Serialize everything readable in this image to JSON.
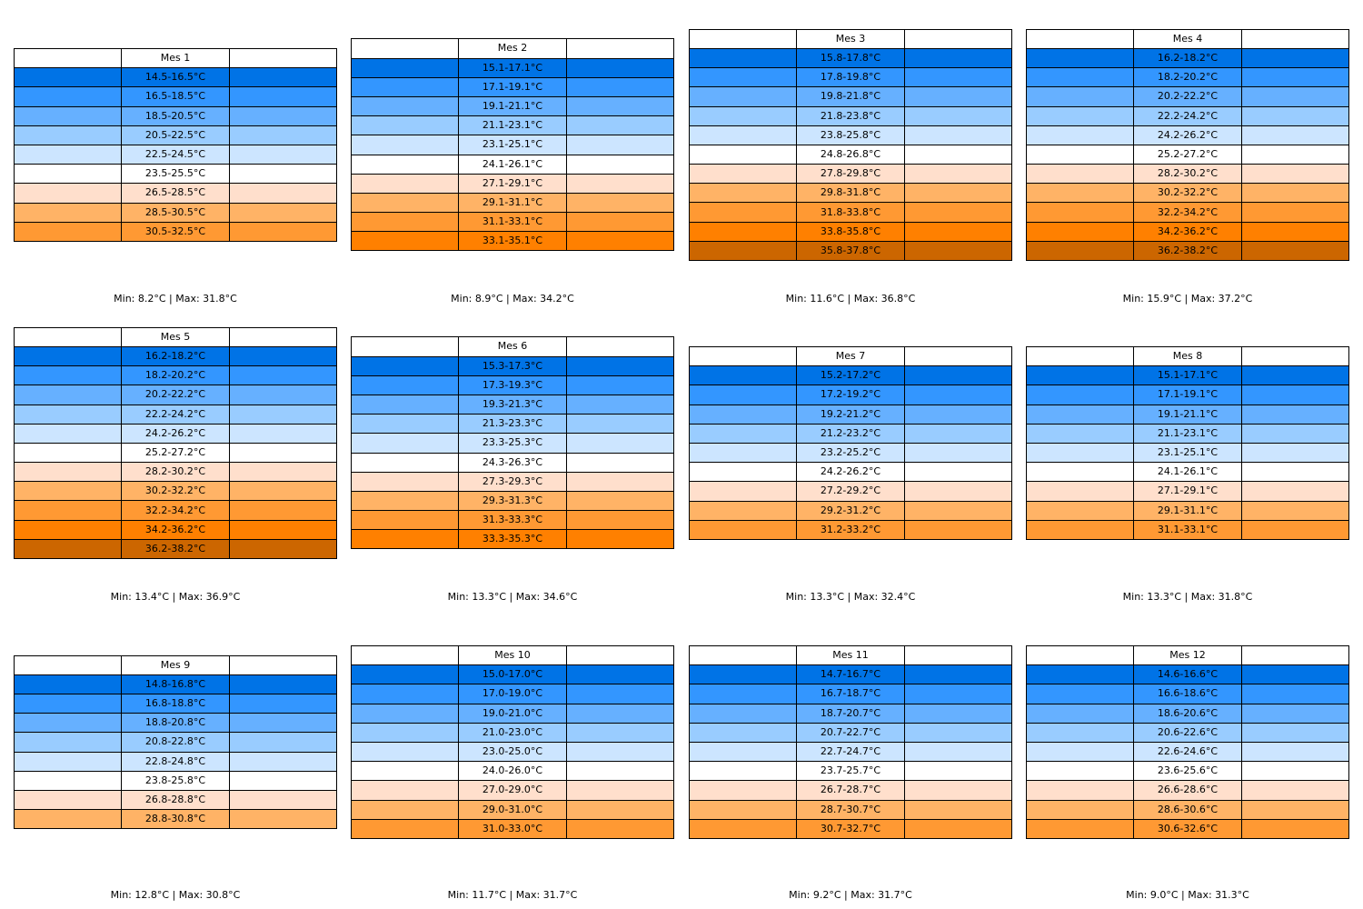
{
  "chart_data": {
    "type": "table",
    "colors": {
      "dark-blue": "#0073e6",
      "blue": "#3396ff",
      "mid-blue": "#66b0ff",
      "light-blue": "#99ccff",
      "pale-blue": "#cce5ff",
      "white": "#ffffff",
      "pale-orange": "#ffdfcc",
      "light-orange": "#ffb366",
      "orange": "#ff9933",
      "bright-orange": "#ff8000",
      "dark-orange": "#cc6600"
    },
    "months": [
      {
        "title": "Mes 1",
        "minmax": "Min: 8.2°C | Max: 31.8°C",
        "rows": [
          {
            "range": "14.5-16.5°C",
            "color": "dark-blue"
          },
          {
            "range": "16.5-18.5°C",
            "color": "blue"
          },
          {
            "range": "18.5-20.5°C",
            "color": "mid-blue"
          },
          {
            "range": "20.5-22.5°C",
            "color": "light-blue"
          },
          {
            "range": "22.5-24.5°C",
            "color": "pale-blue"
          },
          {
            "range": "23.5-25.5°C",
            "color": "white"
          },
          {
            "range": "26.5-28.5°C",
            "color": "pale-orange"
          },
          {
            "range": "28.5-30.5°C",
            "color": "light-orange"
          },
          {
            "range": "30.5-32.5°C",
            "color": "orange"
          }
        ]
      },
      {
        "title": "Mes 2",
        "minmax": "Min: 8.9°C | Max: 34.2°C",
        "rows": [
          {
            "range": "15.1-17.1°C",
            "color": "dark-blue"
          },
          {
            "range": "17.1-19.1°C",
            "color": "blue"
          },
          {
            "range": "19.1-21.1°C",
            "color": "mid-blue"
          },
          {
            "range": "21.1-23.1°C",
            "color": "light-blue"
          },
          {
            "range": "23.1-25.1°C",
            "color": "pale-blue"
          },
          {
            "range": "24.1-26.1°C",
            "color": "white"
          },
          {
            "range": "27.1-29.1°C",
            "color": "pale-orange"
          },
          {
            "range": "29.1-31.1°C",
            "color": "light-orange"
          },
          {
            "range": "31.1-33.1°C",
            "color": "orange"
          },
          {
            "range": "33.1-35.1°C",
            "color": "bright-orange"
          }
        ]
      },
      {
        "title": "Mes 3",
        "minmax": "Min: 11.6°C | Max: 36.8°C",
        "rows": [
          {
            "range": "15.8-17.8°C",
            "color": "dark-blue"
          },
          {
            "range": "17.8-19.8°C",
            "color": "blue"
          },
          {
            "range": "19.8-21.8°C",
            "color": "mid-blue"
          },
          {
            "range": "21.8-23.8°C",
            "color": "light-blue"
          },
          {
            "range": "23.8-25.8°C",
            "color": "pale-blue"
          },
          {
            "range": "24.8-26.8°C",
            "color": "white"
          },
          {
            "range": "27.8-29.8°C",
            "color": "pale-orange"
          },
          {
            "range": "29.8-31.8°C",
            "color": "light-orange"
          },
          {
            "range": "31.8-33.8°C",
            "color": "orange"
          },
          {
            "range": "33.8-35.8°C",
            "color": "bright-orange"
          },
          {
            "range": "35.8-37.8°C",
            "color": "dark-orange"
          }
        ]
      },
      {
        "title": "Mes 4",
        "minmax": "Min: 15.9°C | Max: 37.2°C",
        "rows": [
          {
            "range": "16.2-18.2°C",
            "color": "dark-blue"
          },
          {
            "range": "18.2-20.2°C",
            "color": "blue"
          },
          {
            "range": "20.2-22.2°C",
            "color": "mid-blue"
          },
          {
            "range": "22.2-24.2°C",
            "color": "light-blue"
          },
          {
            "range": "24.2-26.2°C",
            "color": "pale-blue"
          },
          {
            "range": "25.2-27.2°C",
            "color": "white"
          },
          {
            "range": "28.2-30.2°C",
            "color": "pale-orange"
          },
          {
            "range": "30.2-32.2°C",
            "color": "light-orange"
          },
          {
            "range": "32.2-34.2°C",
            "color": "orange"
          },
          {
            "range": "34.2-36.2°C",
            "color": "bright-orange"
          },
          {
            "range": "36.2-38.2°C",
            "color": "dark-orange"
          }
        ]
      },
      {
        "title": "Mes 5",
        "minmax": "Min: 13.4°C | Max: 36.9°C",
        "rows": [
          {
            "range": "16.2-18.2°C",
            "color": "dark-blue"
          },
          {
            "range": "18.2-20.2°C",
            "color": "blue"
          },
          {
            "range": "20.2-22.2°C",
            "color": "mid-blue"
          },
          {
            "range": "22.2-24.2°C",
            "color": "light-blue"
          },
          {
            "range": "24.2-26.2°C",
            "color": "pale-blue"
          },
          {
            "range": "25.2-27.2°C",
            "color": "white"
          },
          {
            "range": "28.2-30.2°C",
            "color": "pale-orange"
          },
          {
            "range": "30.2-32.2°C",
            "color": "light-orange"
          },
          {
            "range": "32.2-34.2°C",
            "color": "orange"
          },
          {
            "range": "34.2-36.2°C",
            "color": "bright-orange"
          },
          {
            "range": "36.2-38.2°C",
            "color": "dark-orange"
          }
        ]
      },
      {
        "title": "Mes 6",
        "minmax": "Min: 13.3°C | Max: 34.6°C",
        "rows": [
          {
            "range": "15.3-17.3°C",
            "color": "dark-blue"
          },
          {
            "range": "17.3-19.3°C",
            "color": "blue"
          },
          {
            "range": "19.3-21.3°C",
            "color": "mid-blue"
          },
          {
            "range": "21.3-23.3°C",
            "color": "light-blue"
          },
          {
            "range": "23.3-25.3°C",
            "color": "pale-blue"
          },
          {
            "range": "24.3-26.3°C",
            "color": "white"
          },
          {
            "range": "27.3-29.3°C",
            "color": "pale-orange"
          },
          {
            "range": "29.3-31.3°C",
            "color": "light-orange"
          },
          {
            "range": "31.3-33.3°C",
            "color": "orange"
          },
          {
            "range": "33.3-35.3°C",
            "color": "bright-orange"
          }
        ]
      },
      {
        "title": "Mes 7",
        "minmax": "Min: 13.3°C | Max: 32.4°C",
        "rows": [
          {
            "range": "15.2-17.2°C",
            "color": "dark-blue"
          },
          {
            "range": "17.2-19.2°C",
            "color": "blue"
          },
          {
            "range": "19.2-21.2°C",
            "color": "mid-blue"
          },
          {
            "range": "21.2-23.2°C",
            "color": "light-blue"
          },
          {
            "range": "23.2-25.2°C",
            "color": "pale-blue"
          },
          {
            "range": "24.2-26.2°C",
            "color": "white"
          },
          {
            "range": "27.2-29.2°C",
            "color": "pale-orange"
          },
          {
            "range": "29.2-31.2°C",
            "color": "light-orange"
          },
          {
            "range": "31.2-33.2°C",
            "color": "orange"
          }
        ]
      },
      {
        "title": "Mes 8",
        "minmax": "Min: 13.3°C | Max: 31.8°C",
        "rows": [
          {
            "range": "15.1-17.1°C",
            "color": "dark-blue"
          },
          {
            "range": "17.1-19.1°C",
            "color": "blue"
          },
          {
            "range": "19.1-21.1°C",
            "color": "mid-blue"
          },
          {
            "range": "21.1-23.1°C",
            "color": "light-blue"
          },
          {
            "range": "23.1-25.1°C",
            "color": "pale-blue"
          },
          {
            "range": "24.1-26.1°C",
            "color": "white"
          },
          {
            "range": "27.1-29.1°C",
            "color": "pale-orange"
          },
          {
            "range": "29.1-31.1°C",
            "color": "light-orange"
          },
          {
            "range": "31.1-33.1°C",
            "color": "orange"
          }
        ]
      },
      {
        "title": "Mes 9",
        "minmax": "Min: 12.8°C | Max: 30.8°C",
        "rows": [
          {
            "range": "14.8-16.8°C",
            "color": "dark-blue"
          },
          {
            "range": "16.8-18.8°C",
            "color": "blue"
          },
          {
            "range": "18.8-20.8°C",
            "color": "mid-blue"
          },
          {
            "range": "20.8-22.8°C",
            "color": "light-blue"
          },
          {
            "range": "22.8-24.8°C",
            "color": "pale-blue"
          },
          {
            "range": "23.8-25.8°C",
            "color": "white"
          },
          {
            "range": "26.8-28.8°C",
            "color": "pale-orange"
          },
          {
            "range": "28.8-30.8°C",
            "color": "light-orange"
          }
        ]
      },
      {
        "title": "Mes 10",
        "minmax": "Min: 11.7°C | Max: 31.7°C",
        "rows": [
          {
            "range": "15.0-17.0°C",
            "color": "dark-blue"
          },
          {
            "range": "17.0-19.0°C",
            "color": "blue"
          },
          {
            "range": "19.0-21.0°C",
            "color": "mid-blue"
          },
          {
            "range": "21.0-23.0°C",
            "color": "light-blue"
          },
          {
            "range": "23.0-25.0°C",
            "color": "pale-blue"
          },
          {
            "range": "24.0-26.0°C",
            "color": "white"
          },
          {
            "range": "27.0-29.0°C",
            "color": "pale-orange"
          },
          {
            "range": "29.0-31.0°C",
            "color": "light-orange"
          },
          {
            "range": "31.0-33.0°C",
            "color": "orange"
          }
        ]
      },
      {
        "title": "Mes 11",
        "minmax": "Min: 9.2°C | Max: 31.7°C",
        "rows": [
          {
            "range": "14.7-16.7°C",
            "color": "dark-blue"
          },
          {
            "range": "16.7-18.7°C",
            "color": "blue"
          },
          {
            "range": "18.7-20.7°C",
            "color": "mid-blue"
          },
          {
            "range": "20.7-22.7°C",
            "color": "light-blue"
          },
          {
            "range": "22.7-24.7°C",
            "color": "pale-blue"
          },
          {
            "range": "23.7-25.7°C",
            "color": "white"
          },
          {
            "range": "26.7-28.7°C",
            "color": "pale-orange"
          },
          {
            "range": "28.7-30.7°C",
            "color": "light-orange"
          },
          {
            "range": "30.7-32.7°C",
            "color": "orange"
          }
        ]
      },
      {
        "title": "Mes 12",
        "minmax": "Min: 9.0°C | Max: 31.3°C",
        "rows": [
          {
            "range": "14.6-16.6°C",
            "color": "dark-blue"
          },
          {
            "range": "16.6-18.6°C",
            "color": "blue"
          },
          {
            "range": "18.6-20.6°C",
            "color": "mid-blue"
          },
          {
            "range": "20.6-22.6°C",
            "color": "light-blue"
          },
          {
            "range": "22.6-24.6°C",
            "color": "pale-blue"
          },
          {
            "range": "23.6-25.6°C",
            "color": "white"
          },
          {
            "range": "26.6-28.6°C",
            "color": "pale-orange"
          },
          {
            "range": "28.6-30.6°C",
            "color": "light-orange"
          },
          {
            "range": "30.6-32.6°C",
            "color": "orange"
          }
        ]
      }
    ]
  }
}
